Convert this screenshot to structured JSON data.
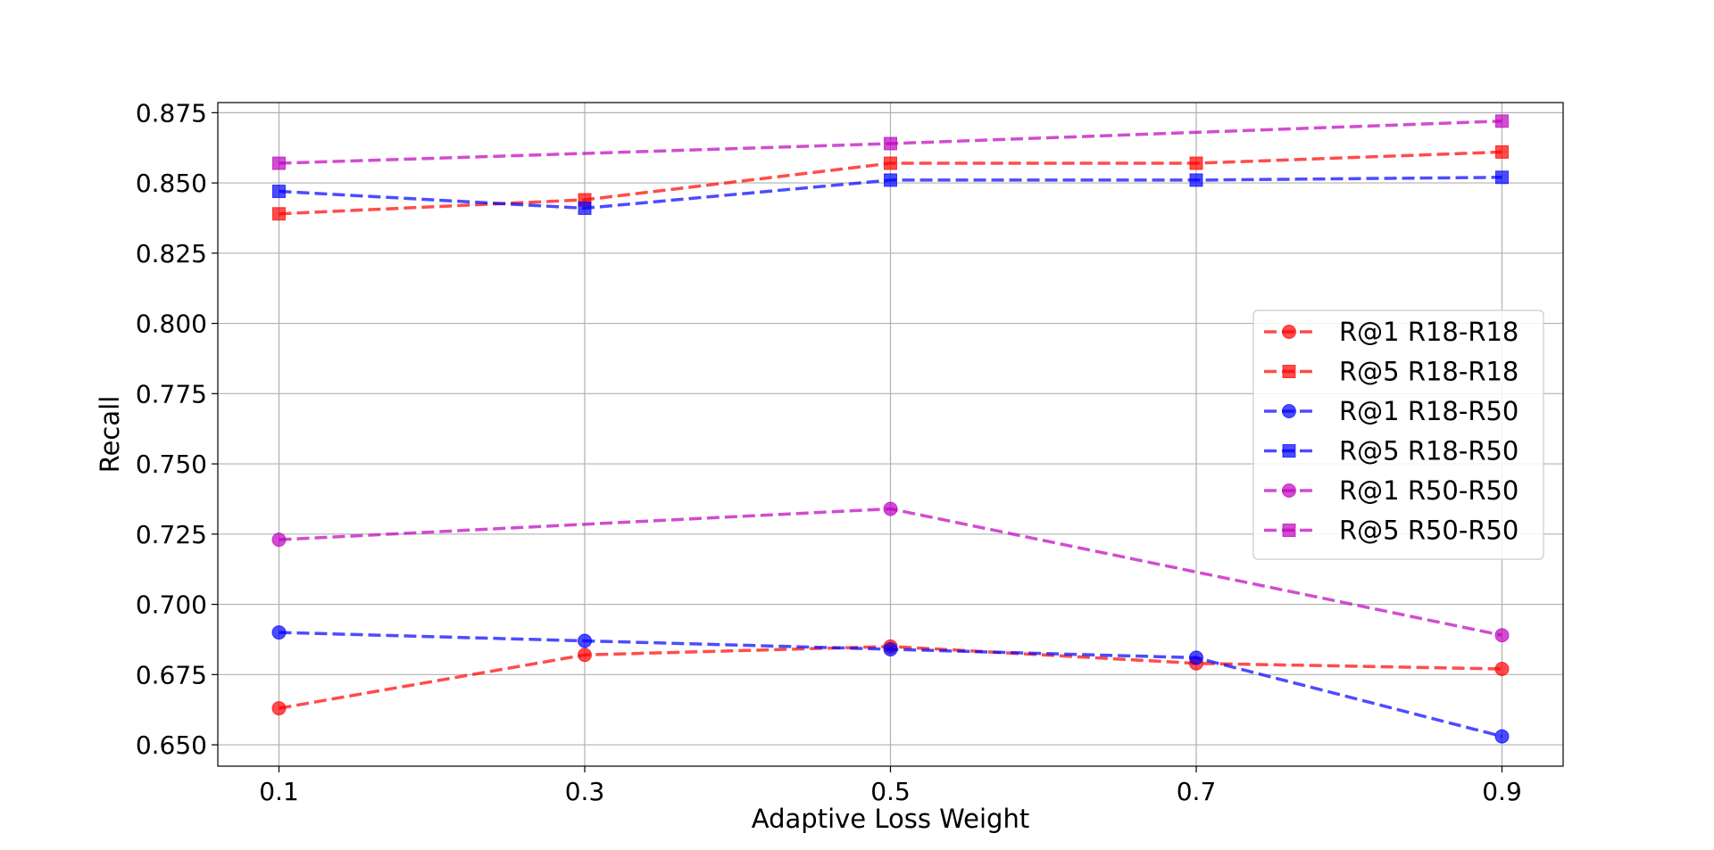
{
  "chart_data": {
    "type": "line",
    "title": "",
    "xlabel": "Adaptive Loss Weight",
    "ylabel": "Recall",
    "x": [
      0.1,
      0.3,
      0.5,
      0.7,
      0.9
    ],
    "x_tick_labels": [
      "0.1",
      "0.3",
      "0.5",
      "0.7",
      "0.9"
    ],
    "xlim": [
      0.06,
      0.94
    ],
    "ylim": [
      0.6424,
      0.8786
    ],
    "y_ticks": [
      0.65,
      0.675,
      0.7,
      0.725,
      0.75,
      0.775,
      0.8,
      0.825,
      0.85,
      0.875
    ],
    "y_tick_labels": [
      "0.650",
      "0.675",
      "0.700",
      "0.725",
      "0.750",
      "0.775",
      "0.800",
      "0.825",
      "0.850",
      "0.875"
    ],
    "grid": true,
    "legend_position": "center-right",
    "series": [
      {
        "name": "R@1 R18-R18",
        "color": "#ff0000",
        "marker": "circle",
        "values": [
          0.663,
          0.682,
          0.685,
          0.679,
          0.677
        ]
      },
      {
        "name": "R@5 R18-R18",
        "color": "#ff0000",
        "marker": "square",
        "values": [
          0.839,
          0.844,
          0.857,
          0.857,
          0.861
        ]
      },
      {
        "name": "R@1 R18-R50",
        "color": "#0000ff",
        "marker": "circle",
        "values": [
          0.69,
          0.687,
          0.684,
          0.681,
          0.653
        ]
      },
      {
        "name": "R@5 R18-R50",
        "color": "#0000ff",
        "marker": "square",
        "values": [
          0.847,
          0.841,
          0.851,
          0.851,
          0.852
        ]
      },
      {
        "name": "R@1 R50-R50",
        "color": "#bf00bf",
        "marker": "circle",
        "values": [
          0.723,
          null,
          0.734,
          null,
          0.689
        ]
      },
      {
        "name": "R@5 R50-R50",
        "color": "#bf00bf",
        "marker": "square",
        "values": [
          0.857,
          null,
          0.864,
          null,
          0.872
        ]
      }
    ]
  }
}
